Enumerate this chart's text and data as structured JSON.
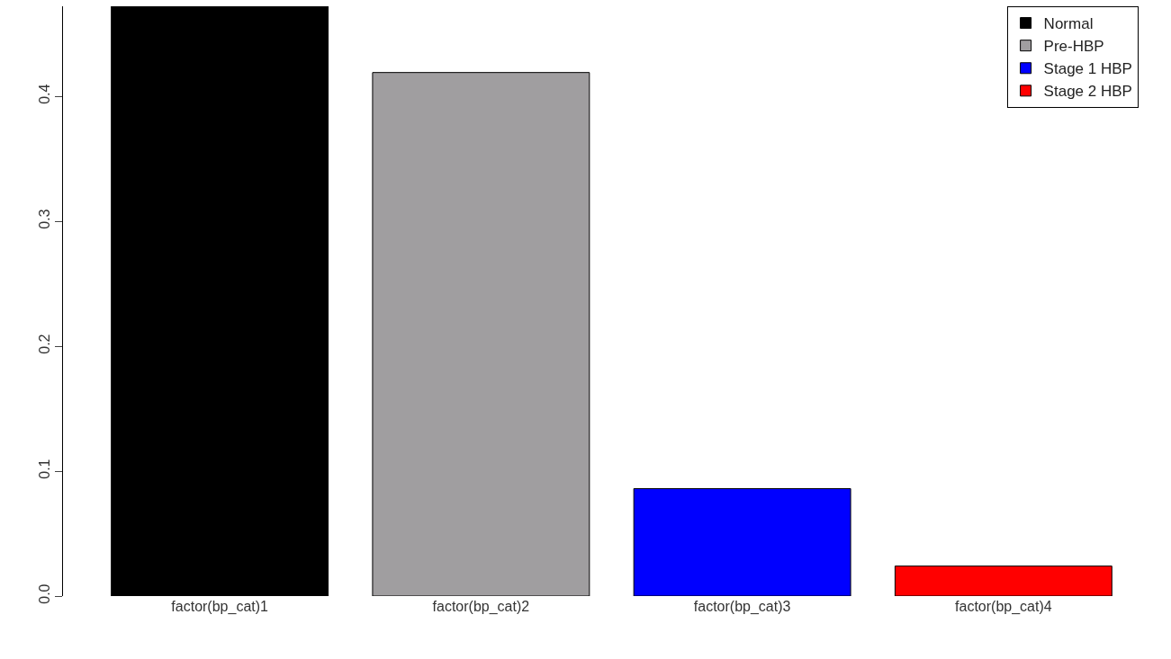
{
  "chart_data": {
    "type": "bar",
    "categories": [
      "factor(bp_cat)1",
      "factor(bp_cat)2",
      "factor(bp_cat)3",
      "factor(bp_cat)4"
    ],
    "series": [
      {
        "name": "Normal",
        "color": "#000000",
        "values": [
          0.472,
          null,
          null,
          null
        ]
      },
      {
        "name": "Pre-HBP",
        "color": "#a09ea0",
        "values": [
          null,
          0.419,
          null,
          null
        ]
      },
      {
        "name": "Stage 1 HBP",
        "color": "#0000ff",
        "values": [
          null,
          null,
          0.086,
          null
        ]
      },
      {
        "name": "Stage 2 HBP",
        "color": "#ff0000",
        "values": [
          null,
          null,
          null,
          0.024
        ]
      }
    ],
    "ylim": [
      0,
      0.472
    ],
    "yticks": [
      {
        "value": 0,
        "label": "0.0"
      },
      0.1,
      0.2,
      0.3,
      0.4
    ],
    "grid": false,
    "legend": "top right"
  }
}
